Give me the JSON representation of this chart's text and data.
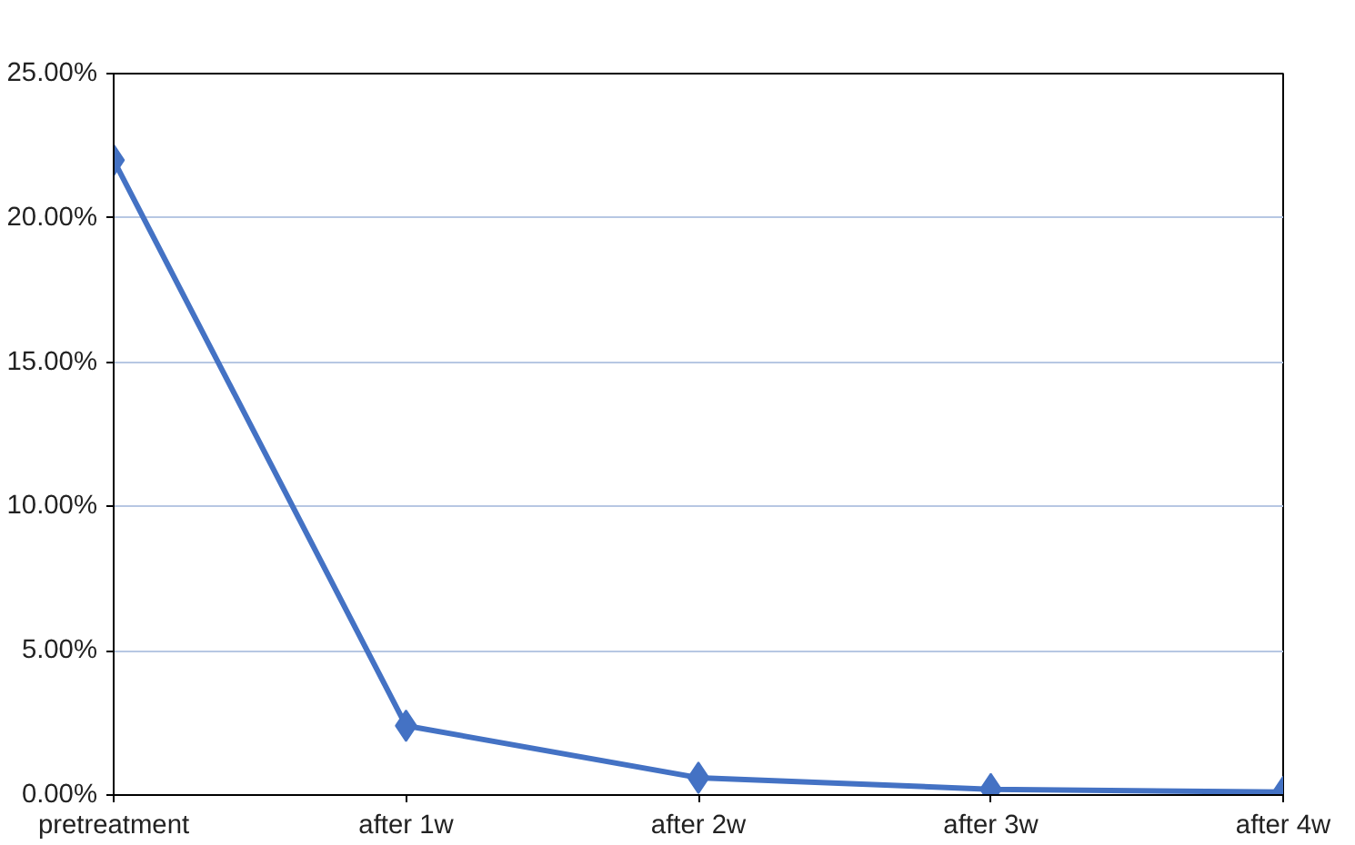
{
  "chart_data": {
    "type": "line",
    "categories": [
      "pretreatment",
      "after 1w",
      "after 2w",
      "after 3w",
      "after 4w"
    ],
    "series": [
      {
        "color": "#4472c4",
        "values": [
          22.0,
          2.4,
          0.6,
          0.2,
          0.1
        ]
      }
    ],
    "ylim": [
      0,
      25
    ],
    "yticks": [
      {
        "value": 0,
        "label": "0.00%"
      },
      {
        "value": 5,
        "label": "5.00%"
      },
      {
        "value": 10,
        "label": "10.00%"
      },
      {
        "value": 15,
        "label": "15.00%"
      },
      {
        "value": 20,
        "label": "20.00%"
      },
      {
        "value": 25,
        "label": "25.00%"
      }
    ],
    "grid": "y",
    "marker": "diamond",
    "line_style": "solid"
  }
}
